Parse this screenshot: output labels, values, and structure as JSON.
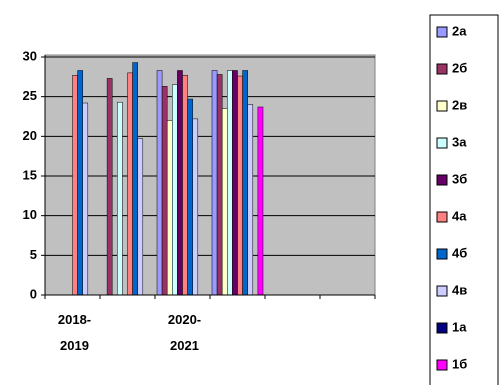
{
  "chart_data": {
    "type": "bar",
    "categories": [
      "2018-2019",
      null,
      "2020-2021",
      null,
      null,
      null
    ],
    "series": [
      {
        "name": "2а",
        "color": "#9999ff",
        "values": [
          null,
          null,
          28.3,
          28.3,
          null,
          null
        ]
      },
      {
        "name": "2б",
        "color": "#993366",
        "values": [
          null,
          27.3,
          26.3,
          27.8,
          null,
          null
        ]
      },
      {
        "name": "2в",
        "color": "#ffffcc",
        "values": [
          null,
          null,
          22,
          23.5,
          null,
          null
        ]
      },
      {
        "name": "3а",
        "color": "#ccffff",
        "values": [
          null,
          24.3,
          26.5,
          28.3,
          null,
          null
        ]
      },
      {
        "name": "3б",
        "color": "#660066",
        "values": [
          null,
          null,
          28.3,
          28.3,
          null,
          null
        ]
      },
      {
        "name": "4а",
        "color": "#ff8080",
        "values": [
          27.7,
          28,
          27.7,
          27.6,
          null,
          null
        ]
      },
      {
        "name": "4б",
        "color": "#0066cc",
        "values": [
          28.3,
          29.3,
          24.7,
          28.3,
          null,
          null
        ]
      },
      {
        "name": "4в",
        "color": "#ccccff",
        "values": [
          24.2,
          19.7,
          22.2,
          24,
          null,
          null
        ]
      },
      {
        "name": "1а",
        "color": "#000080",
        "values": [
          null,
          null,
          null,
          null,
          null,
          null
        ]
      },
      {
        "name": "1б",
        "color": "#ff00ff",
        "values": [
          null,
          null,
          null,
          23.7,
          null,
          null
        ]
      }
    ],
    "ylim": [
      0,
      30
    ],
    "yticks": [
      0,
      5,
      10,
      15,
      20,
      25,
      30
    ],
    "grid": true
  }
}
